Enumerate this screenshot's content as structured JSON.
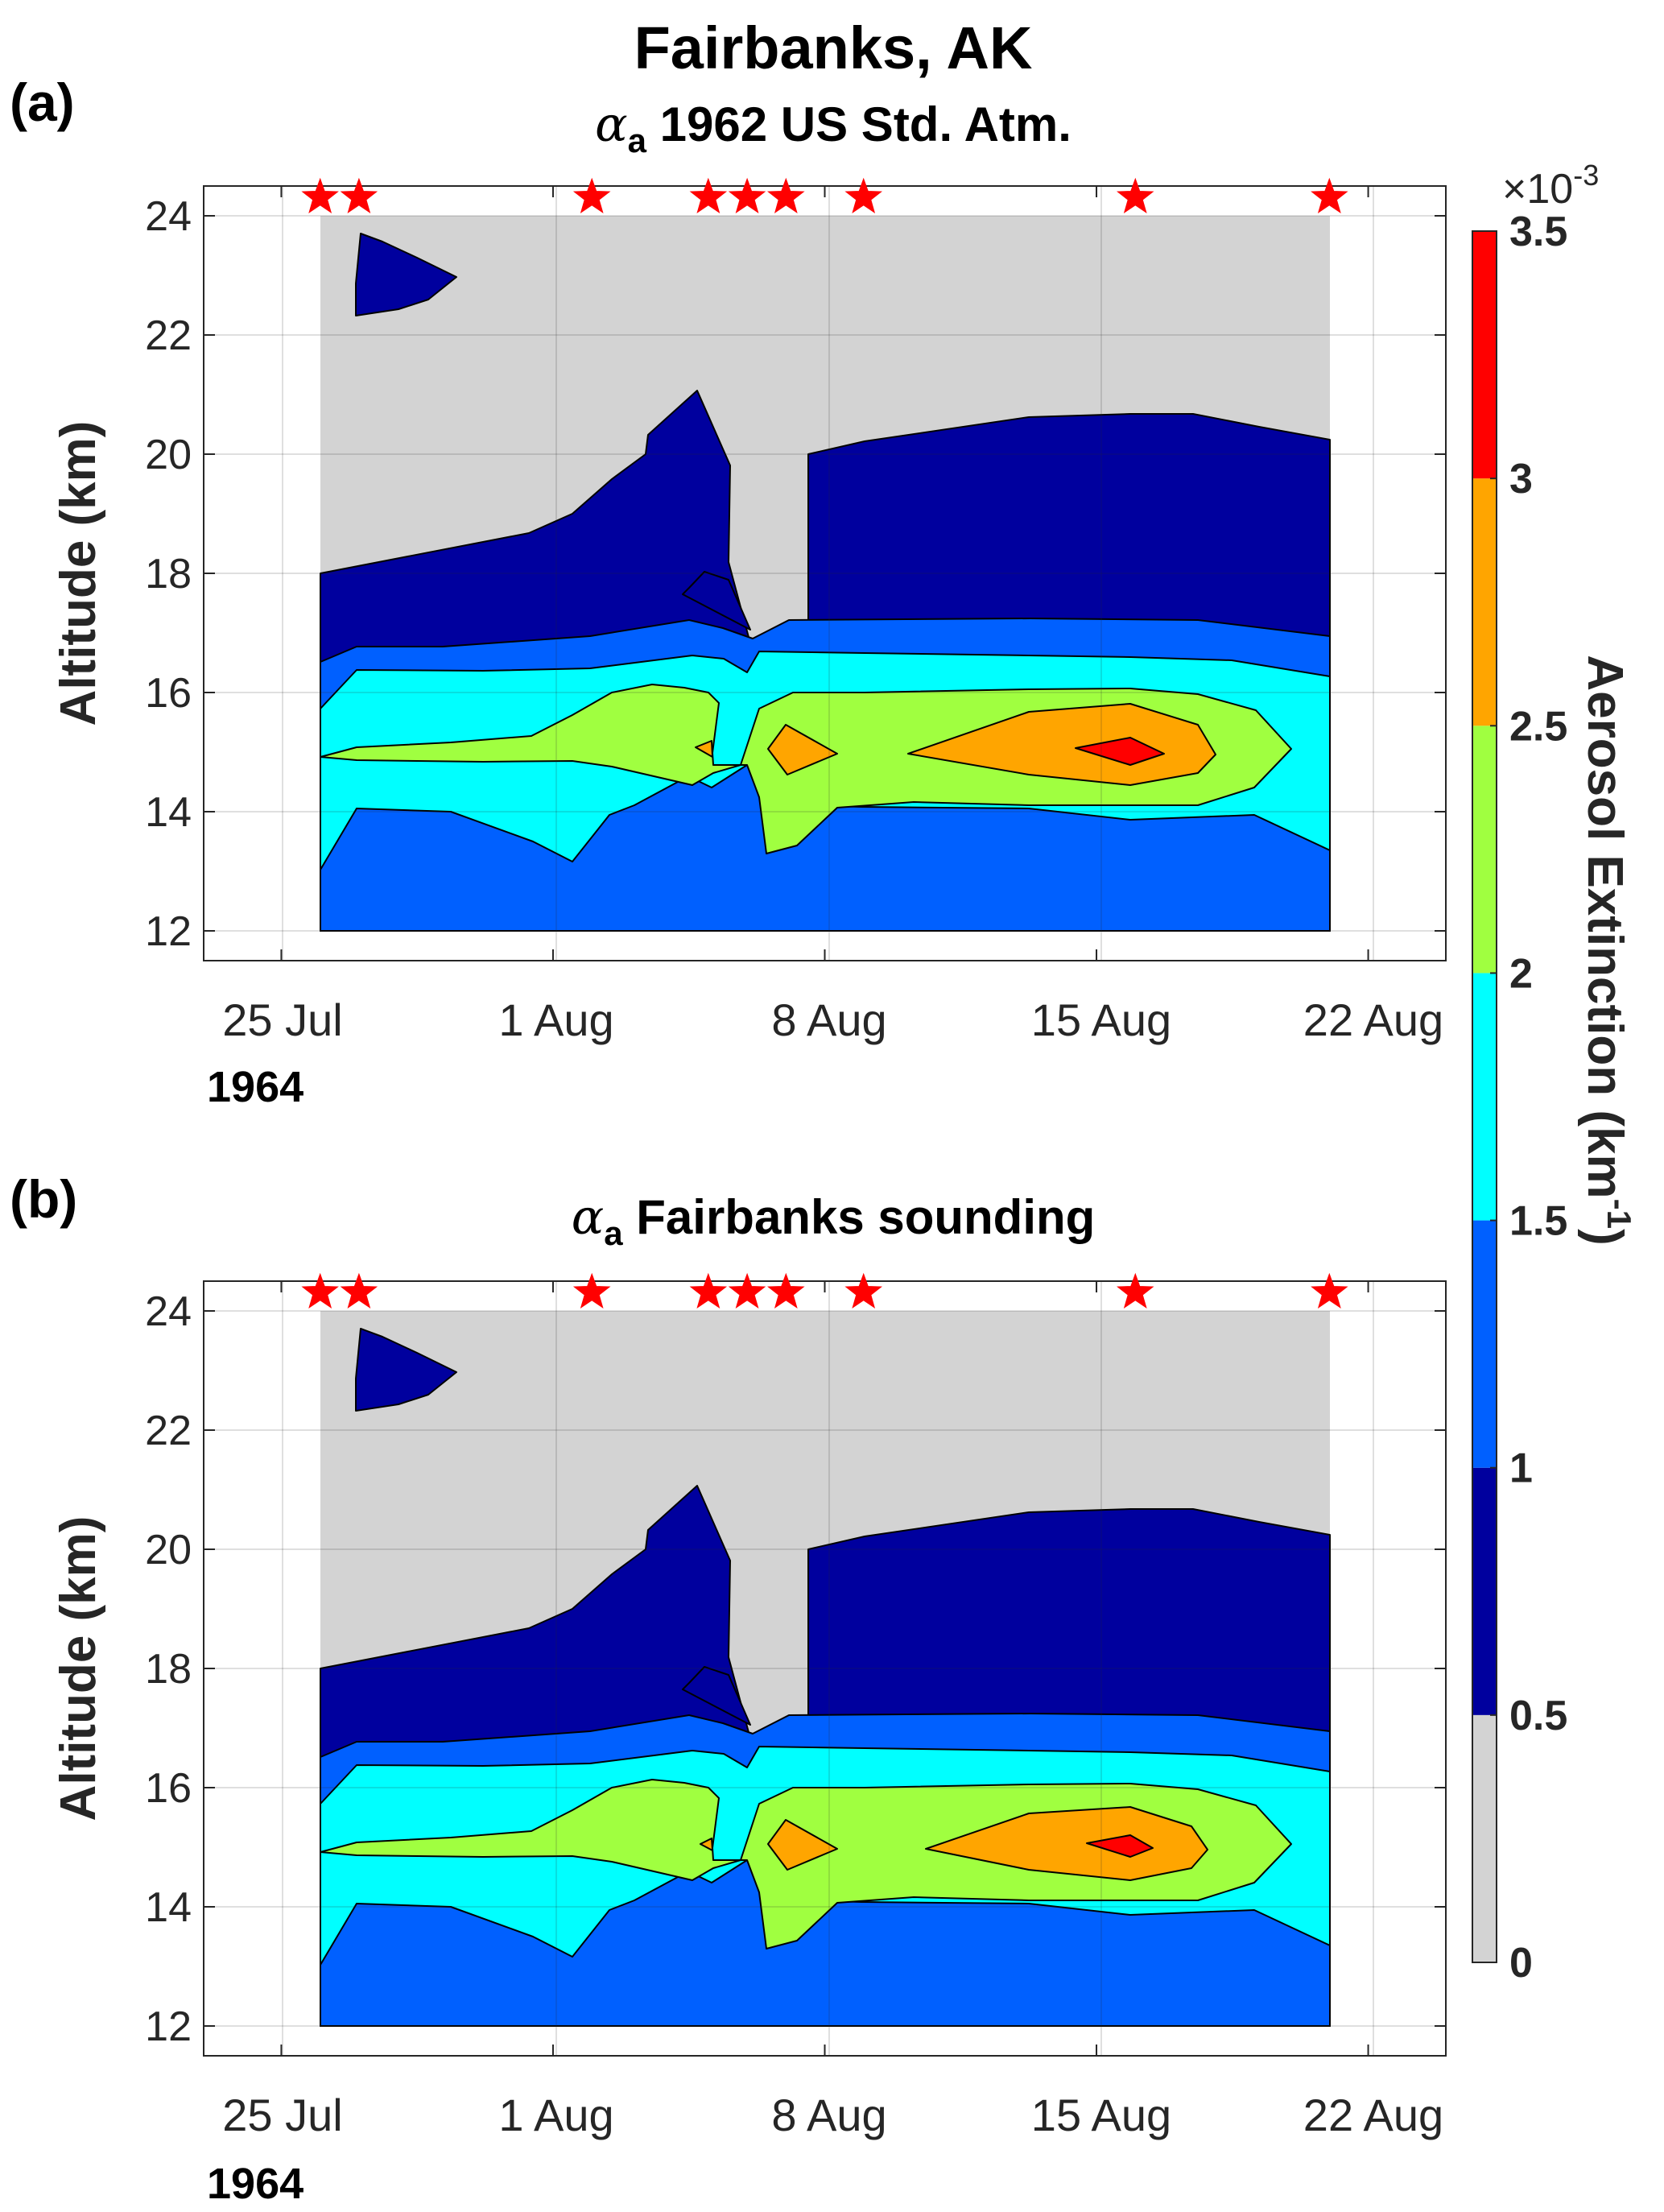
{
  "figure_title": "Fairbanks, AK",
  "colorbar": {
    "label": "Aerosol Extinction (km",
    "label_sup": "-1",
    "label_close": ")",
    "multiplier": "×10",
    "multiplier_exp": "-3",
    "levels": [
      0,
      0.5,
      1,
      1.5,
      2,
      2.5,
      3,
      3.5
    ],
    "tick_labels": [
      "0",
      "0.5",
      "1",
      "1.5",
      "2",
      "2.5",
      "3",
      "3.5"
    ],
    "colors": [
      "#d3d3d3",
      "#00009e",
      "#0060ff",
      "#00ffff",
      "#a0ff40",
      "#ffa500",
      "#ff0000"
    ]
  },
  "chart_data": [
    {
      "type": "contour",
      "panel_label": "(a)",
      "title_symbol": "α",
      "title_sub": "a",
      "title_rest": " 1962 US Std. Atm.",
      "ylabel": "Altitude (km)",
      "x_tick_labels": [
        "25 Jul",
        "1 Aug",
        "8 Aug",
        "15 Aug",
        "22 Aug"
      ],
      "x_year_label": "1964",
      "y_tick_labels": [
        "12",
        "14",
        "16",
        "18",
        "20",
        "22",
        "24"
      ],
      "yticks": [
        12,
        14,
        16,
        18,
        20,
        22,
        24
      ],
      "xlim_day": [
        -2,
        30
      ],
      "ylim": [
        11.5,
        24.5
      ],
      "grid": true,
      "data_extent": {
        "day_start": 1,
        "day_end": 27,
        "alt_start": 12,
        "alt_end": 24
      },
      "measurement_days": [
        1,
        2,
        8,
        11,
        12,
        13,
        15,
        22,
        27
      ],
      "units_scale": "x10^-3 km^-1"
    },
    {
      "type": "contour",
      "panel_label": "(b)",
      "title_symbol": "α",
      "title_sub": "a",
      "title_rest": " Fairbanks sounding",
      "ylabel": "Altitude (km)",
      "x_tick_labels": [
        "25 Jul",
        "1 Aug",
        "8 Aug",
        "15 Aug",
        "22 Aug"
      ],
      "x_year_label": "1964",
      "y_tick_labels": [
        "12",
        "14",
        "16",
        "18",
        "20",
        "22",
        "24"
      ],
      "yticks": [
        12,
        14,
        16,
        18,
        20,
        22,
        24
      ],
      "xlim_day": [
        -2,
        30
      ],
      "ylim": [
        11.5,
        24.5
      ],
      "grid": true,
      "data_extent": {
        "day_start": 1,
        "day_end": 27,
        "alt_start": 12,
        "alt_end": 24
      },
      "measurement_days": [
        1,
        2,
        8,
        11,
        12,
        13,
        15,
        22,
        27
      ],
      "units_scale": "x10^-3 km^-1"
    }
  ]
}
